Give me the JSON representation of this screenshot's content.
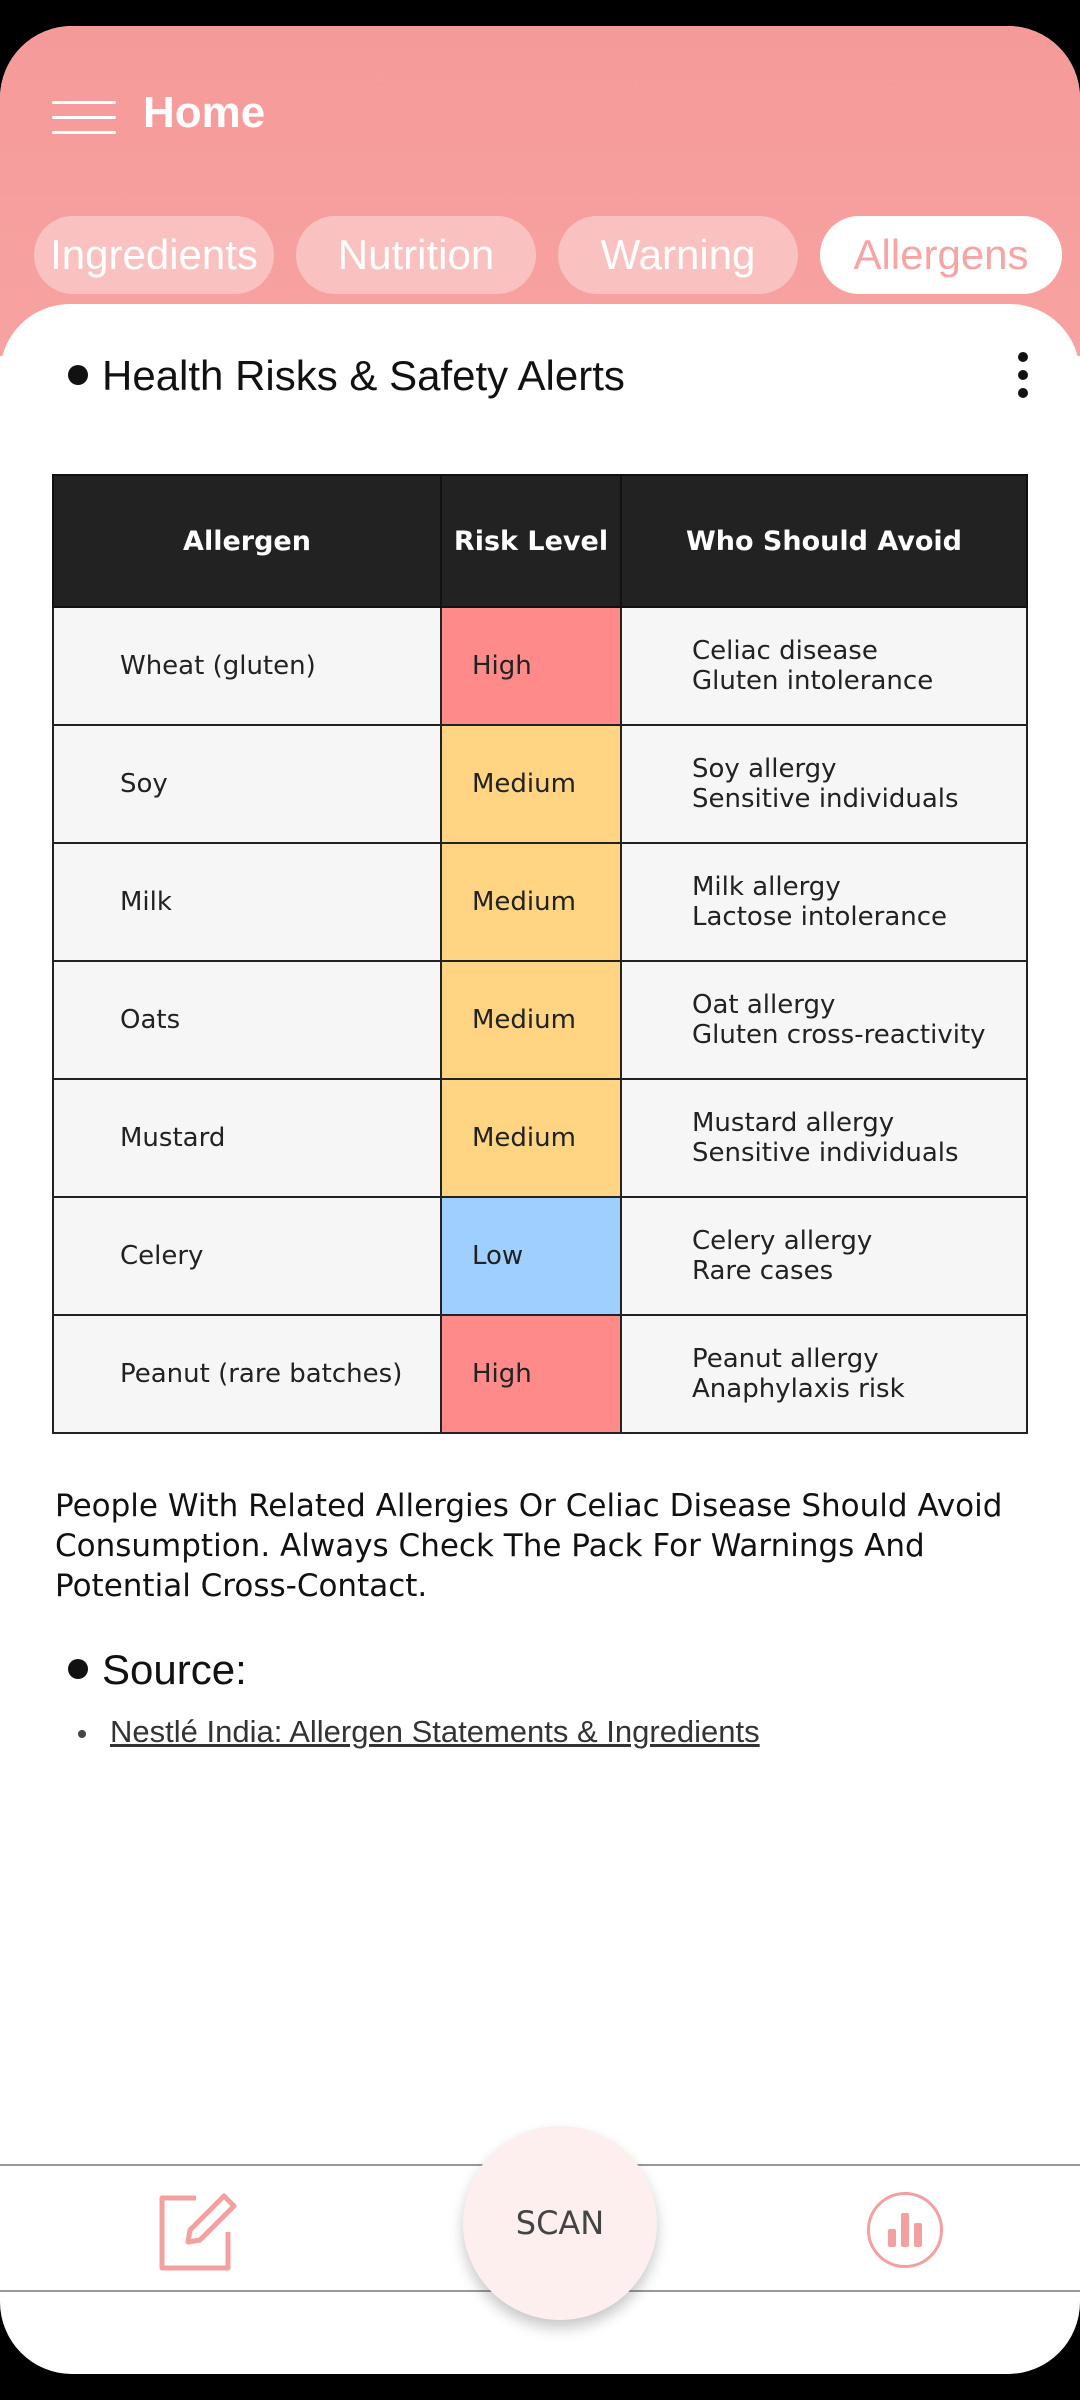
{
  "header": {
    "title": "Home"
  },
  "tabs": [
    {
      "label": "Ingredients"
    },
    {
      "label": "Nutrition"
    },
    {
      "label": "Warning"
    },
    {
      "label": "Allergens"
    }
  ],
  "section": {
    "heading": "Health Risks & Safety Alerts"
  },
  "table": {
    "headers": [
      "Allergen",
      "Risk Level",
      "Who Should Avoid"
    ],
    "rows": [
      {
        "allergen": "Wheat (gluten)",
        "risk": "High",
        "avoid": [
          "Celiac disease",
          "Gluten intolerance"
        ]
      },
      {
        "allergen": "Soy",
        "risk": "Medium",
        "avoid": [
          "Soy allergy",
          "Sensitive individuals"
        ]
      },
      {
        "allergen": "Milk",
        "risk": "Medium",
        "avoid": [
          "Milk allergy",
          "Lactose intolerance"
        ]
      },
      {
        "allergen": "Oats",
        "risk": "Medium",
        "avoid": [
          "Oat allergy",
          "Gluten cross-reactivity"
        ]
      },
      {
        "allergen": "Mustard",
        "risk": "Medium",
        "avoid": [
          "Mustard allergy",
          "Sensitive individuals"
        ]
      },
      {
        "allergen": "Celery",
        "risk": "Low",
        "avoid": [
          "Celery allergy",
          "Rare cases"
        ]
      },
      {
        "allergen": "Peanut (rare batches)",
        "risk": "High",
        "avoid": [
          "Peanut allergy",
          "Anaphylaxis risk"
        ]
      }
    ]
  },
  "risk_colors": {
    "High": "#ff8a8a",
    "Medium": "#ffd483",
    "Low": "#9fcfff"
  },
  "note": "People With Related Allergies Or Celiac Disease Should Avoid Consumption. Always Check The Pack For Warnings And Potential Cross-Contact.",
  "source": {
    "heading": "Source:",
    "link_text": "Nestlé India: Allergen Statements & Ingredients"
  },
  "bottom_nav": {
    "scan_label": "SCAN"
  }
}
